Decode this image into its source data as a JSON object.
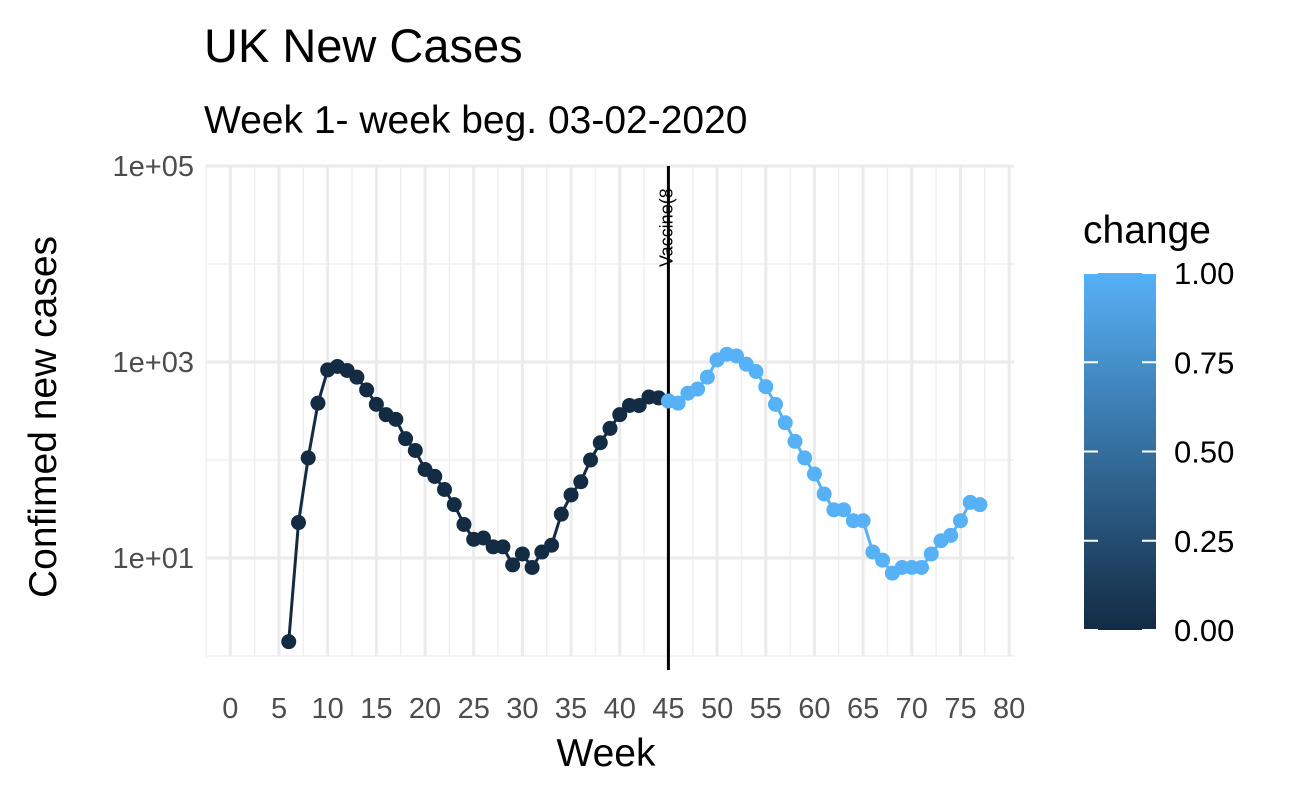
{
  "chart_data": {
    "type": "line",
    "title": "UK New Cases",
    "subtitle": "Week 1- week beg. 03-02-2020",
    "xlabel": "Week",
    "ylabel": "Confimed new cases",
    "xlim": [
      -2.5,
      80.5
    ],
    "ylim": [
      1,
      100000
    ],
    "y_scale": "log10",
    "x_ticks": [
      0,
      5,
      10,
      15,
      20,
      25,
      30,
      35,
      40,
      45,
      50,
      55,
      60,
      65,
      70,
      75,
      80
    ],
    "x_tick_labels": [
      "0",
      "5",
      "10",
      "15",
      "20",
      "25",
      "30",
      "35",
      "40",
      "45",
      "50",
      "55",
      "60",
      "65",
      "70",
      "75",
      "80"
    ],
    "y_ticks": [
      10,
      1000,
      100000
    ],
    "y_tick_labels": [
      "1e+01",
      "1e+03",
      "1e+05"
    ],
    "grid": true,
    "vline": {
      "x": 45,
      "label": "Vaccine(8"
    },
    "legend": {
      "title": "change",
      "position": "right",
      "type": "colorbar",
      "labels": [
        "1.00",
        "0.75",
        "0.50",
        "0.25",
        "0.00"
      ],
      "low_color": "#132B43",
      "high_color": "#56B1F7"
    },
    "series": [
      {
        "change": 0,
        "x": [
          6,
          7,
          8,
          9,
          10,
          11,
          12,
          13,
          14,
          15,
          16,
          17,
          18,
          19,
          20,
          21,
          22,
          23,
          24,
          25,
          26,
          27,
          28,
          29,
          30,
          31,
          32,
          33,
          34,
          35,
          36,
          37,
          38,
          39,
          40,
          41,
          42,
          43,
          44,
          45
        ],
        "y": [
          1.4,
          23,
          105,
          380,
          830,
          900,
          820,
          700,
          520,
          370,
          290,
          260,
          165,
          125,
          80,
          68,
          50,
          35,
          22,
          15.5,
          16,
          13,
          13,
          8.5,
          11,
          8,
          11.5,
          13.5,
          28,
          44,
          60,
          100,
          150,
          210,
          290,
          360,
          360,
          440,
          430,
          400
        ]
      },
      {
        "change": 1,
        "x": [
          45,
          46,
          47,
          48,
          49,
          50,
          51,
          52,
          53,
          54,
          55,
          56,
          57,
          58,
          59,
          60,
          61,
          62,
          63,
          64,
          65,
          66,
          67,
          68,
          69,
          70,
          71,
          72,
          73,
          74,
          75,
          76,
          77
        ],
        "y": [
          400,
          380,
          480,
          530,
          700,
          1050,
          1200,
          1150,
          950,
          800,
          560,
          370,
          240,
          155,
          105,
          72,
          45,
          31,
          31,
          24,
          24,
          11.5,
          9.5,
          7,
          8,
          8,
          8,
          11,
          15,
          17,
          24,
          37,
          35
        ]
      }
    ]
  }
}
